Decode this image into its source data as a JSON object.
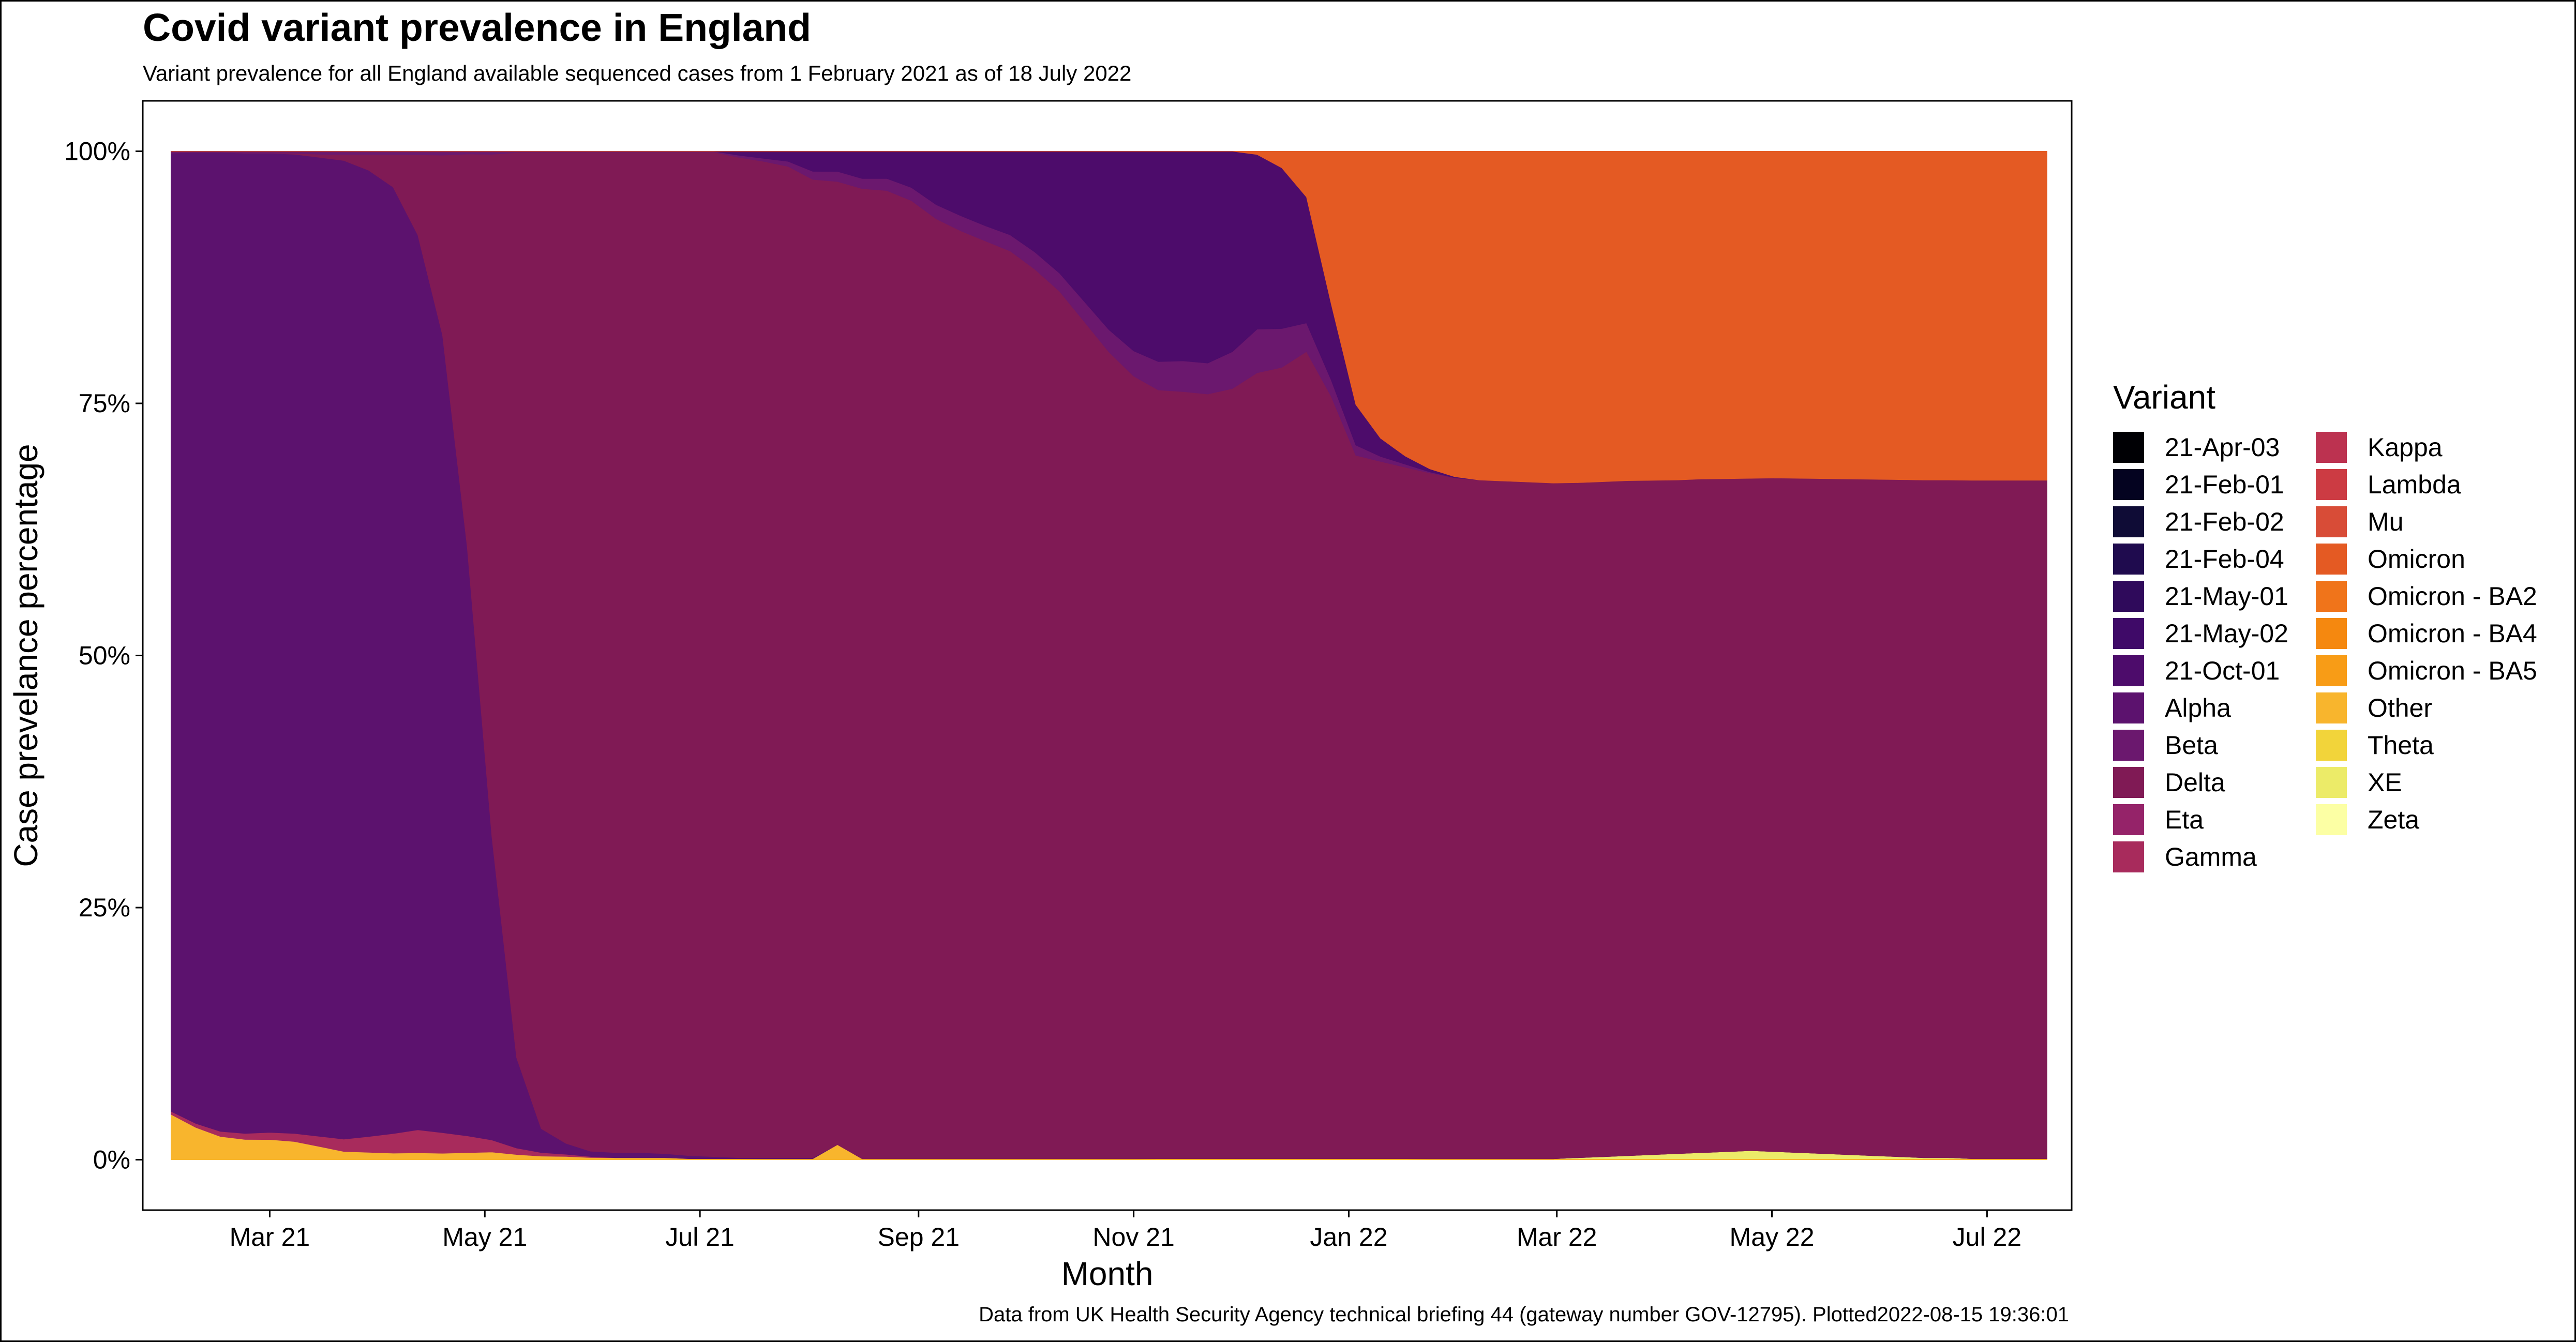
{
  "title": "Covid variant prevalence in England",
  "subtitle": "Variant prevalence for all England available sequenced cases from 1 February 2021 as of 18 July 2022",
  "caption": "Data from UK Health Security Agency technical briefing 44 (gateway number GOV-12795). Plotted2022-08-15 19:36:01",
  "chart_data": {
    "type": "area",
    "stacked": "percent",
    "title": "Covid variant prevalence in England",
    "xlabel": "Month",
    "ylabel": "Case prevelance percentage",
    "x_tick_labels": [
      "Mar 21",
      "May 21",
      "Jul 21",
      "Sep 21",
      "Nov 21",
      "Jan 22",
      "Mar 22",
      "May 22",
      "Jul 22"
    ],
    "x_tick_dates": [
      "2021-03-01",
      "2021-05-01",
      "2021-07-01",
      "2021-09-01",
      "2021-11-01",
      "2022-01-01",
      "2022-03-01",
      "2022-05-01",
      "2022-07-01"
    ],
    "y_tick_labels": [
      "0%",
      "25%",
      "50%",
      "75%",
      "100%"
    ],
    "y_tick_values": [
      0,
      25,
      50,
      75,
      100
    ],
    "xlim": [
      "2021-01-24",
      "2022-07-25"
    ],
    "ylim": [
      -5,
      105
    ],
    "grid": false,
    "legend_title": "Variant",
    "legend_position": "right",
    "legend": [
      {
        "name": "21-Apr-03",
        "color": "#000004"
      },
      {
        "name": "21-Feb-01",
        "color": "#040320"
      },
      {
        "name": "21-Feb-02",
        "color": "#0f0c36"
      },
      {
        "name": "21-Feb-04",
        "color": "#1f0b4e"
      },
      {
        "name": "21-May-01",
        "color": "#2f0a5b"
      },
      {
        "name": "21-May-02",
        "color": "#3f0a68"
      },
      {
        "name": "21-Oct-01",
        "color": "#4d0c6b"
      },
      {
        "name": "Alpha",
        "color": "#5c126e"
      },
      {
        "name": "Beta",
        "color": "#6b186e"
      },
      {
        "name": "Delta",
        "color": "#801a55"
      },
      {
        "name": "Eta",
        "color": "#952369"
      },
      {
        "name": "Gamma",
        "color": "#a82b5c"
      },
      {
        "name": "Kappa",
        "color": "#bc3250"
      },
      {
        "name": "Lambda",
        "color": "#cc3b43"
      },
      {
        "name": "Mu",
        "color": "#d84c37"
      },
      {
        "name": "Omicron",
        "color": "#e45a23"
      },
      {
        "name": "Omicron - BA2",
        "color": "#f0741a"
      },
      {
        "name": "Omicron - BA4",
        "color": "#f5880f"
      },
      {
        "name": "Omicron - BA5",
        "color": "#f89c16"
      },
      {
        "name": "Other",
        "color": "#f8b52d"
      },
      {
        "name": "Theta",
        "color": "#f2d43a"
      },
      {
        "name": "XE",
        "color": "#eceb68"
      },
      {
        "name": "Zeta",
        "color": "#fcffa4"
      }
    ],
    "x": [
      "2021-02-01",
      "2021-02-08",
      "2021-02-15",
      "2021-02-22",
      "2021-03-01",
      "2021-03-08",
      "2021-03-15",
      "2021-03-22",
      "2021-03-29",
      "2021-04-05",
      "2021-04-12",
      "2021-04-19",
      "2021-04-26",
      "2021-05-03",
      "2021-05-10",
      "2021-05-17",
      "2021-05-24",
      "2021-05-31",
      "2021-06-07",
      "2021-06-14",
      "2021-06-21",
      "2021-06-28",
      "2021-07-05",
      "2021-07-12",
      "2021-07-19",
      "2021-07-26",
      "2021-08-02",
      "2021-08-09",
      "2021-08-16",
      "2021-08-23",
      "2021-08-30",
      "2021-09-06",
      "2021-09-13",
      "2021-09-20",
      "2021-09-27",
      "2021-10-04",
      "2021-10-11",
      "2021-10-18",
      "2021-10-25",
      "2021-11-01",
      "2021-11-08",
      "2021-11-15",
      "2021-11-22",
      "2021-11-29",
      "2021-12-06",
      "2021-12-13",
      "2021-12-20",
      "2021-12-27",
      "2022-01-03",
      "2022-01-10",
      "2022-01-17",
      "2022-01-24",
      "2022-01-31",
      "2022-02-07",
      "2022-02-14",
      "2022-02-21",
      "2022-02-28",
      "2022-03-07",
      "2022-03-14",
      "2022-03-21",
      "2022-03-28",
      "2022-04-04",
      "2022-04-11",
      "2022-04-18",
      "2022-04-25",
      "2022-05-02",
      "2022-05-09",
      "2022-05-16",
      "2022-05-23",
      "2022-05-30",
      "2022-06-06",
      "2022-06-13",
      "2022-06-20",
      "2022-06-27",
      "2022-07-04",
      "2022-07-11",
      "2022-07-18"
    ],
    "series": [
      {
        "name": "Other",
        "values": [
          4.5,
          3.2,
          2.3,
          2,
          2,
          1.8,
          1.3,
          0.8,
          0.7,
          0.6,
          0.6,
          0.5,
          0.5,
          0.5,
          0.4,
          0.3,
          0.3,
          0.2,
          0.2,
          0.2,
          0.2,
          0.1,
          0.1,
          0.1,
          0.1,
          0.1,
          0.1,
          1.5,
          0.1,
          0.1,
          0.1,
          0.1,
          0.1,
          0.1,
          0.1,
          0.1,
          0.1,
          0.1,
          0.1,
          0.1,
          0.1,
          0.1,
          0.1,
          0.1,
          0.1,
          0.1,
          0.1,
          0.1,
          0.1,
          0.1,
          0.1,
          0.1,
          0.1,
          0.1,
          0.1,
          0.1,
          0.1,
          0.1,
          0.1,
          0.1,
          0.1,
          0.1,
          0.1,
          0.1,
          0.1,
          0.1,
          0.1,
          0.1,
          0.1,
          0.1,
          0.1,
          0.1,
          0.1,
          0.1,
          0.1,
          0.1,
          0.1
        ]
      },
      {
        "name": "XE",
        "values": [
          0,
          0,
          0,
          0,
          0,
          0,
          0,
          0,
          0,
          0,
          0,
          0,
          0,
          0,
          0,
          0,
          0,
          0,
          0,
          0,
          0,
          0,
          0,
          0,
          0,
          0,
          0,
          0,
          0,
          0,
          0,
          0,
          0,
          0,
          0,
          0,
          0,
          0,
          0,
          0,
          0,
          0,
          0,
          0,
          0,
          0,
          0,
          0,
          0,
          0,
          0,
          0,
          0,
          0,
          0,
          0,
          0,
          0.1,
          0.2,
          0.3,
          0.4,
          0.5,
          0.6,
          0.7,
          0.8,
          0.7,
          0.6,
          0.5,
          0.4,
          0.3,
          0.2,
          0.1,
          0.1,
          0,
          0,
          0,
          0
        ]
      },
      {
        "name": "Gamma",
        "values": [
          0.3,
          0.4,
          0.5,
          0.6,
          0.7,
          0.8,
          1,
          1.2,
          1.5,
          1.8,
          2,
          1.6,
          1.2,
          0.8,
          0.5,
          0.3,
          0.2,
          0.1,
          0,
          0,
          0,
          0,
          0,
          0,
          0,
          0,
          0,
          0,
          0,
          0,
          0,
          0,
          0,
          0,
          0,
          0,
          0,
          0,
          0,
          0,
          0,
          0,
          0,
          0,
          0,
          0,
          0,
          0,
          0,
          0,
          0,
          0,
          0,
          0,
          0,
          0,
          0,
          0,
          0,
          0,
          0,
          0,
          0,
          0,
          0,
          0,
          0,
          0,
          0,
          0,
          0,
          0,
          0,
          0,
          0,
          0,
          0
        ]
      },
      {
        "name": "Alpha",
        "values": [
          95,
          96.3,
          97,
          97,
          97,
          97,
          96,
          95,
          92,
          87,
          78,
          62,
          42,
          20,
          7,
          2,
          1,
          0.5,
          0.5,
          0.5,
          0.4,
          0.3,
          0.2,
          0.1,
          0.1,
          0.1,
          0.1,
          0,
          0,
          0,
          0,
          0,
          0,
          0,
          0,
          0,
          0,
          0,
          0,
          0,
          0,
          0,
          0,
          0,
          0,
          0,
          0,
          0,
          0,
          0,
          0,
          0,
          0,
          0,
          0,
          0,
          0,
          0,
          0,
          0,
          0,
          0,
          0,
          0,
          0,
          0,
          0,
          0,
          0,
          0,
          0,
          0,
          0,
          0,
          0,
          0,
          0
        ]
      },
      {
        "name": "Delta",
        "values": [
          0,
          0,
          0,
          0,
          0,
          0.1,
          0.3,
          0.6,
          1.5,
          3,
          7,
          14,
          28,
          45,
          70,
          82,
          91,
          95,
          98,
          98.7,
          98.9,
          99.3,
          99.2,
          99,
          98.8,
          98.3,
          97.2,
          95.5,
          96.2,
          96,
          95,
          93.2,
          92,
          91,
          90,
          88.2,
          86,
          83,
          80,
          77.6,
          76,
          75,
          74,
          73,
          72,
          71.4,
          70.5,
          70,
          69.4,
          69,
          68.5,
          68,
          67.6,
          67.3,
          67.2,
          67.1,
          67,
          67,
          67,
          67,
          67,
          67,
          67,
          67,
          67,
          67,
          67,
          67,
          67,
          67,
          67,
          67,
          67,
          67,
          67,
          67,
          67
        ]
      },
      {
        "name": "Beta",
        "values": [
          0.2,
          0.1,
          0.1,
          0.2,
          0.2,
          0.2,
          0.3,
          0.3,
          0.3,
          0.3,
          0.3,
          0.3,
          0.2,
          0.2,
          0.1,
          0.1,
          0.1,
          0.1,
          0.1,
          0.1,
          0.1,
          0.1,
          0.1,
          0.2,
          0.3,
          0.5,
          0.8,
          1,
          1,
          1.2,
          1.3,
          1.4,
          1.5,
          1.5,
          1.6,
          1.7,
          1.8,
          2,
          2.2,
          2.5,
          2.8,
          3,
          3,
          3.5,
          4,
          3.5,
          2.5,
          1.5,
          1,
          0.5,
          0.3,
          0.1,
          0,
          0,
          0,
          0,
          0,
          0,
          0,
          0,
          0,
          0,
          0,
          0,
          0,
          0,
          0,
          0,
          0,
          0,
          0,
          0,
          0,
          0,
          0,
          0,
          0
        ]
      },
      {
        "name": "21-Oct-01",
        "values": [
          0,
          0,
          0,
          0,
          0,
          0,
          0,
          0,
          0,
          0,
          0,
          0,
          0,
          0,
          0,
          0,
          0,
          0,
          0,
          0,
          0,
          0,
          0,
          0.4,
          0.7,
          1,
          2,
          2,
          2.7,
          2.7,
          3.6,
          5.3,
          6.4,
          7.4,
          8.3,
          10,
          12.1,
          14.9,
          17.7,
          19.8,
          20.8,
          20.5,
          20.5,
          19,
          16,
          14.5,
          11,
          7,
          4,
          1.8,
          0.8,
          0.3,
          0.1,
          0,
          0,
          0,
          0,
          0,
          0,
          0,
          0,
          0,
          0,
          0,
          0,
          0,
          0,
          0,
          0,
          0,
          0,
          0,
          0,
          0,
          0,
          0,
          0
        ]
      },
      {
        "name": "Omicron",
        "values": [
          0,
          0,
          0,
          0,
          0,
          0,
          0,
          0,
          0,
          0,
          0,
          0,
          0,
          0,
          0,
          0,
          0,
          0,
          0,
          0,
          0,
          0,
          0,
          0,
          0,
          0,
          0,
          0,
          0,
          0,
          0,
          0,
          0,
          0,
          0,
          0,
          0,
          0,
          0,
          0,
          0,
          0,
          0,
          0,
          0.3,
          1.5,
          4,
          14,
          25,
          28.4,
          30.2,
          31.5,
          32.3,
          32.6,
          32.7,
          32.8,
          32.9,
          32.9,
          32.8,
          32.7,
          32.7,
          32.7,
          32.6,
          32.6,
          32.6,
          32.5,
          32.5,
          32.5,
          32.5,
          32.5,
          32.5,
          32.5,
          32.5,
          32.5,
          32.5,
          32.5,
          32.5
        ]
      }
    ]
  },
  "plot_annotations": {
    "legend_columns": 2
  }
}
